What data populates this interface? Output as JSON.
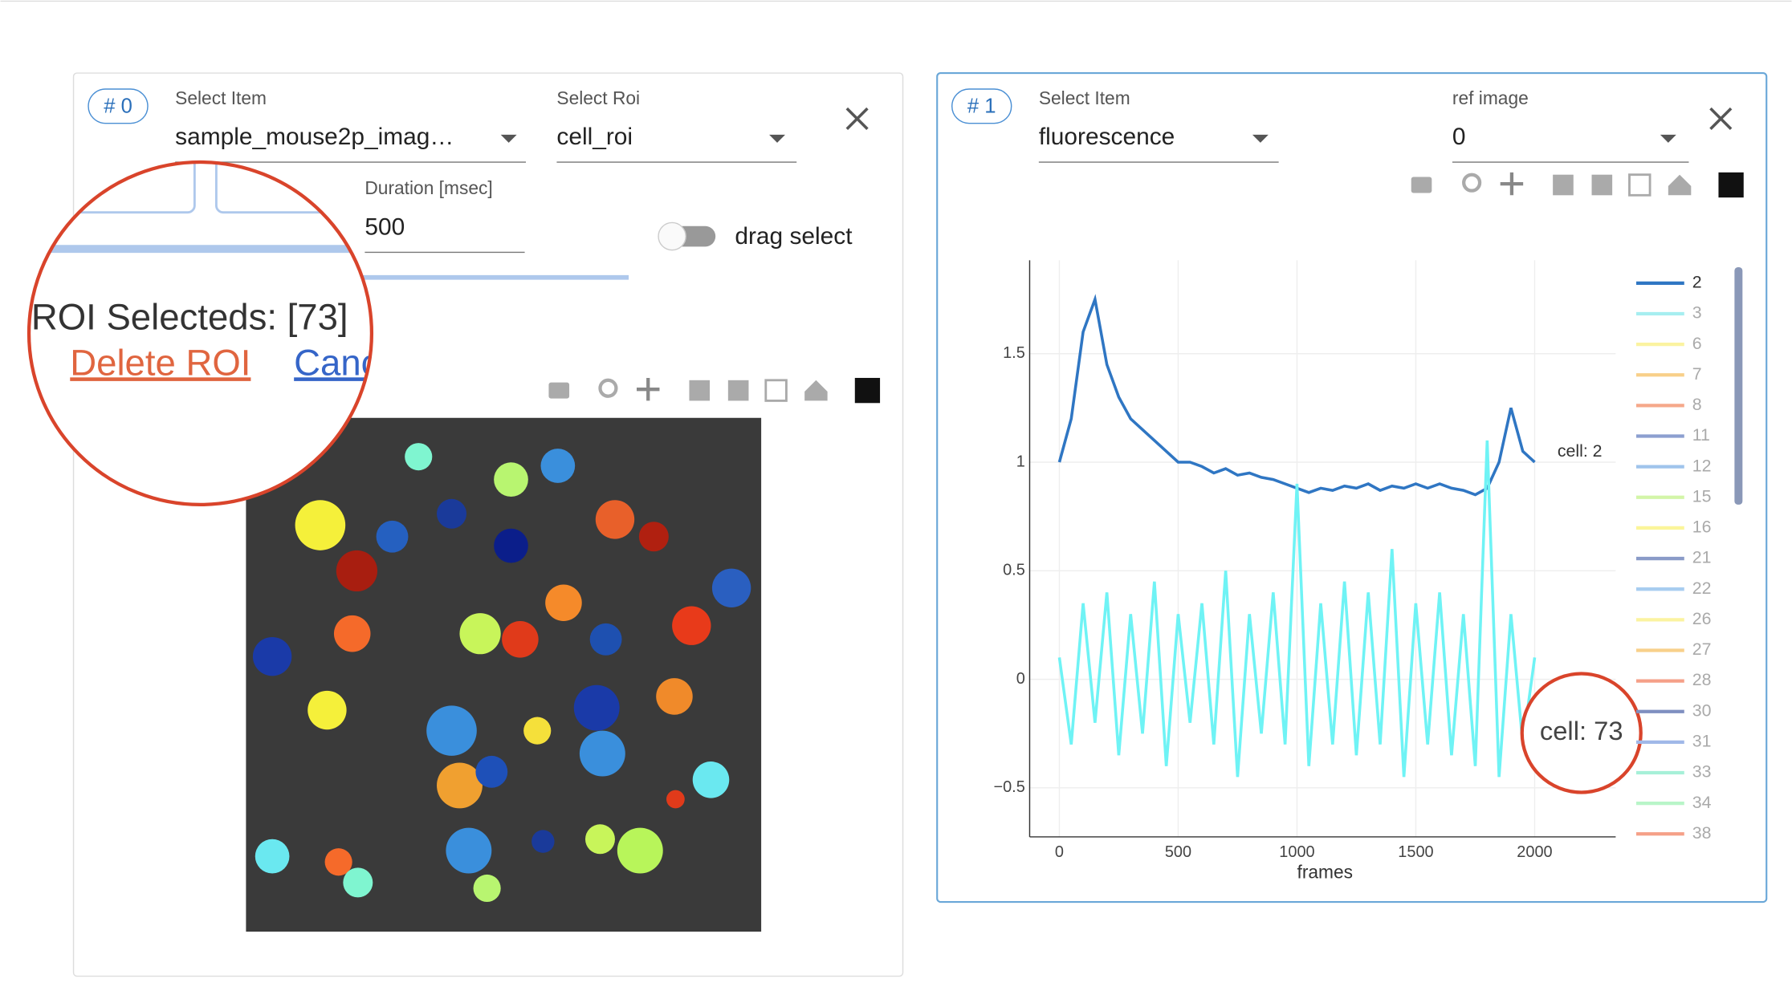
{
  "left_panel": {
    "chip": "# 0",
    "select_item_label": "Select Item",
    "select_item_value": "sample_mouse2p_imag…",
    "select_roi_label": "Select Roi",
    "select_roi_value": "cell_roi",
    "duration_label": "Duration [msec]",
    "duration_value": "500",
    "drag_select": "drag select",
    "roi_selected": "ROI Selecteds: [73]",
    "delete_roi": "Delete ROI",
    "cancel": "Canc"
  },
  "right_panel": {
    "chip": "# 1",
    "select_item_label": "Select Item",
    "select_item_value": "fluorescence",
    "ref_image_label": "ref image",
    "ref_image_value": "0"
  },
  "chart_data": {
    "type": "line",
    "x_label": "frames",
    "x": [
      0,
      50,
      100,
      150,
      200,
      250,
      300,
      350,
      400,
      450,
      500,
      550,
      600,
      650,
      700,
      750,
      800,
      850,
      900,
      950,
      1000,
      1050,
      1100,
      1150,
      1200,
      1250,
      1300,
      1350,
      1400,
      1450,
      1500,
      1550,
      1600,
      1650,
      1700,
      1750,
      1800,
      1850,
      1900,
      1950,
      2000
    ],
    "series": [
      {
        "color": "#2f76c3",
        "values": [
          1.0,
          1.2,
          1.6,
          1.75,
          1.45,
          1.3,
          1.2,
          1.15,
          1.1,
          1.05,
          1.0,
          1.0,
          0.98,
          0.95,
          0.97,
          0.94,
          0.95,
          0.93,
          0.92,
          0.9,
          0.88,
          0.86,
          0.88,
          0.87,
          0.89,
          0.88,
          0.9,
          0.87,
          0.89,
          0.88,
          0.9,
          0.88,
          0.9,
          0.88,
          0.87,
          0.85,
          0.88,
          1.0,
          1.25,
          1.05,
          1.0
        ]
      },
      {
        "color": "#6ff3f5",
        "values": [
          0.1,
          -0.3,
          0.35,
          -0.2,
          0.4,
          -0.35,
          0.3,
          -0.25,
          0.45,
          -0.4,
          0.3,
          -0.2,
          0.35,
          -0.3,
          0.5,
          -0.45,
          0.3,
          -0.25,
          0.4,
          -0.3,
          0.9,
          -0.4,
          0.35,
          -0.3,
          0.45,
          -0.35,
          0.4,
          -0.3,
          0.6,
          -0.45,
          0.35,
          -0.3,
          0.4,
          -0.35,
          0.3,
          -0.4,
          1.1,
          -0.45,
          0.3,
          -0.3,
          0.1
        ]
      }
    ],
    "hover_labels": [
      "cell: 2",
      "cell: 73"
    ],
    "xlim": [
      -125,
      2341
    ],
    "xticks": [
      0,
      500,
      1000,
      1500,
      2000
    ],
    "ylim": [
      -0.726,
      1.93
    ],
    "yticks": [
      {
        "value": -0.5,
        "label": "−0.5"
      },
      0,
      0.5,
      1,
      1.5
    ],
    "grid": true,
    "legend": [
      {
        "name": "2",
        "color": "#2f76c3"
      },
      {
        "name": "3",
        "color": "#a6eef0"
      },
      {
        "name": "6",
        "color": "#fbf3a0"
      },
      {
        "name": "7",
        "color": "#f8d08a"
      },
      {
        "name": "8",
        "color": "#f5a88a"
      },
      {
        "name": "11",
        "color": "#8c9fd0"
      },
      {
        "name": "12",
        "color": "#9fc4ec"
      },
      {
        "name": "15",
        "color": "#d3f5a8"
      },
      {
        "name": "16",
        "color": "#fbf59a"
      },
      {
        "name": "21",
        "color": "#8a9bc8"
      },
      {
        "name": "22",
        "color": "#a8cdf0"
      },
      {
        "name": "26",
        "color": "#fbf3a0"
      },
      {
        "name": "27",
        "color": "#f8d08a"
      },
      {
        "name": "28",
        "color": "#f5a088"
      },
      {
        "name": "30",
        "color": "#7f8fc0"
      },
      {
        "name": "31",
        "color": "#a0b8e8"
      },
      {
        "name": "33",
        "color": "#a6f0d8"
      },
      {
        "name": "34",
        "color": "#b8f5c8"
      },
      {
        "name": "38",
        "color": "#f5a088"
      }
    ]
  }
}
